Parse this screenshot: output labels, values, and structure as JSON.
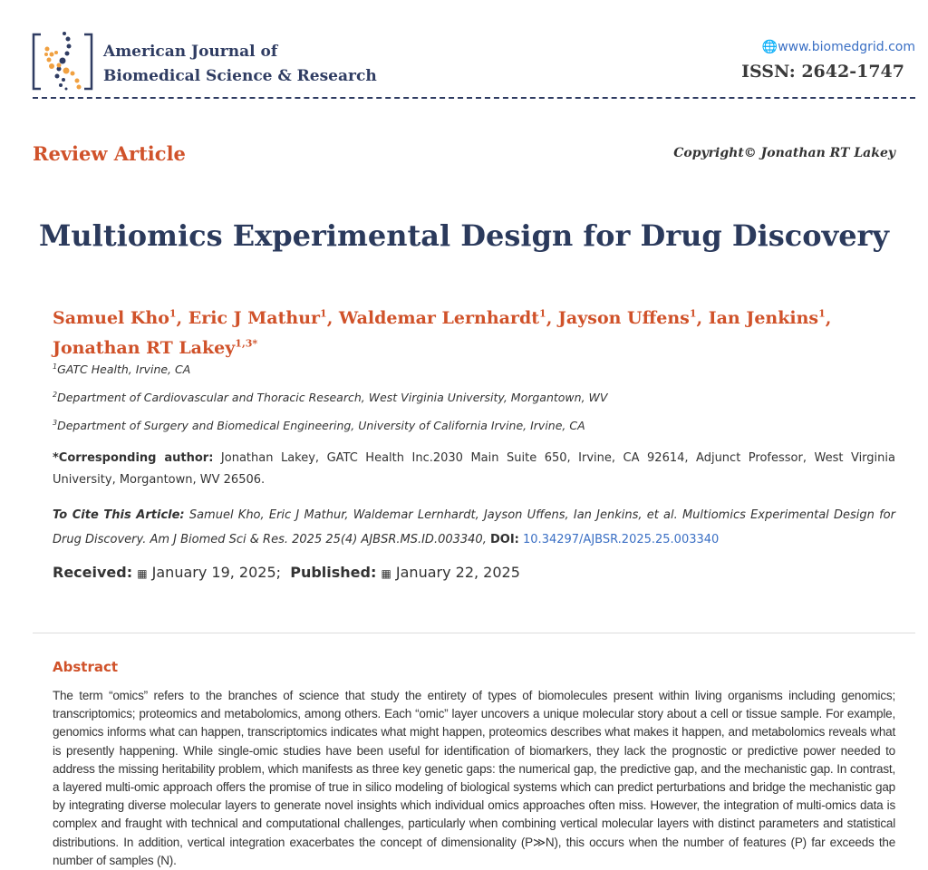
{
  "header": {
    "journal_line1": "American Journal of",
    "journal_line2": "Biomedical Science & Research",
    "website": "www.biomedgrid.com",
    "issn": "ISSN: 2642-1747",
    "colors": {
      "navy": "#2f3c62",
      "orange": "#f0a040",
      "accent": "#d0522a"
    }
  },
  "article_type": "Review Article",
  "copyright": "Copyright© Jonathan RT Lakey",
  "title": "Multiomics Experimental Design for Drug Discovery",
  "authors": [
    {
      "name": "Samuel Kho",
      "sup": "1"
    },
    {
      "name": "Eric J Mathur",
      "sup": "1"
    },
    {
      "name": "Waldemar Lernhardt",
      "sup": "1"
    },
    {
      "name": "Jayson Uffens",
      "sup": "1"
    },
    {
      "name": "Ian Jenkins",
      "sup": "1"
    },
    {
      "name": "Jonathan RT Lakey",
      "sup": "1,3*"
    }
  ],
  "affiliations": [
    {
      "sup": "1",
      "text": "GATC Health, Irvine, CA"
    },
    {
      "sup": "2",
      "text": "Department of Cardiovascular and Thoracic Research, West Virginia University, Morgantown, WV"
    },
    {
      "sup": "3",
      "text": "Department of Surgery and Biomedical Engineering, University of California Irvine, Irvine, CA"
    }
  ],
  "corresponding": {
    "label": "*Corresponding author:",
    "text": "Jonathan Lakey, GATC Health Inc.2030 Main Suite 650, Irvine, CA 92614, Adjunct Professor, West Virginia University, Morgantown, WV 26506."
  },
  "citation": {
    "label": "To Cite This Article:",
    "text": "Samuel Kho, Eric J Mathur, Waldemar Lernhardt, Jayson Uffens, Ian Jenkins, et al. Multiomics Experimental Design for Drug Discovery. Am J Biomed Sci & Res. 2025 25(4) AJBSR.MS.ID.003340,",
    "doi_label": "DOI:",
    "doi": "10.34297/AJBSR.2025.25.003340"
  },
  "dates": {
    "received_label": "Received:",
    "received": "January 19, 2025;",
    "published_label": "Published:",
    "published": "January 22, 2025"
  },
  "abstract": {
    "heading": "Abstract",
    "text": "The term “omics” refers to the branches of science that study the entirety of types of biomolecules present within living organisms including genomics; transcriptomics; proteomics and metabolomics, among others. Each “omic” layer uncovers a unique molecular story about a cell or tissue sample. For example, genomics informs what can happen, transcriptomics indicates what might happen, proteomics describes what makes it happen, and metabolomics reveals what is presently happening. While single-omic studies have been useful for identification of biomarkers, they lack the prognostic or predictive power needed to address the missing heritability problem, which manifests as three key genetic gaps: the numerical gap, the predictive gap, and the mechanistic gap. In contrast, a layered multi-omic approach offers the promise of true in silico modeling of biological systems which can predict perturbations and bridge the mechanistic gap by integrating diverse molecular layers to generate novel insights which individual omics approaches often miss. However, the integration of multi-omics data is complex and fraught with technical and computational challenges, particularly when combining vertical molecular layers with distinct parameters and statistical distributions. In addition, vertical integration exacerbates the concept of dimensionality (P≫N), this occurs when the number of features (P) far exceeds the number of samples (N)."
  }
}
